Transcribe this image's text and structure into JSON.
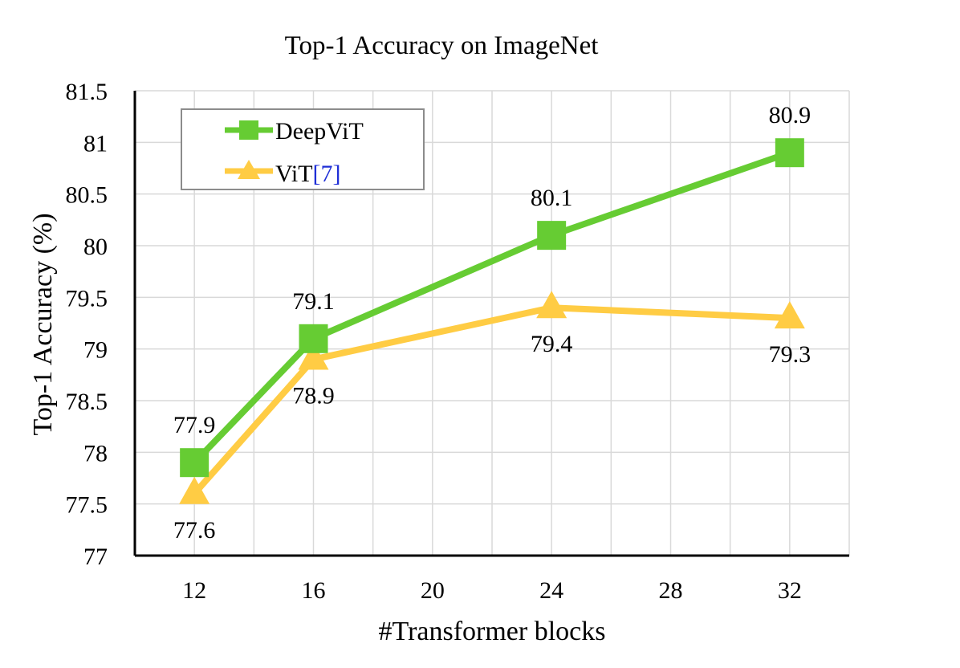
{
  "chart_data": {
    "type": "line",
    "title": "Top-1 Accuracy on ImageNet",
    "xlabel": "#Transformer blocks",
    "ylabel": "Top-1 Accuracy (%)",
    "xlim": [
      10,
      34
    ],
    "ylim": [
      77,
      81.5
    ],
    "x_ticks": [
      12,
      16,
      20,
      24,
      28,
      32
    ],
    "x_tick_labels": [
      "12",
      "16",
      "20",
      "24",
      "28",
      "32"
    ],
    "y_ticks": [
      77,
      77.5,
      78,
      78.5,
      79,
      79.5,
      80,
      80.5,
      81,
      81.5
    ],
    "y_tick_labels": [
      "77",
      "77.5",
      "78",
      "78.5",
      "79",
      "79.5",
      "80",
      "80.5",
      "81",
      "81.5"
    ],
    "grid": true,
    "legend_position": "top-left",
    "series": [
      {
        "name": "DeepViT",
        "marker": "square",
        "color": "#66cc33",
        "x": [
          12,
          16,
          24,
          32
        ],
        "values": [
          77.9,
          79.1,
          80.1,
          80.9
        ],
        "labels": [
          "77.9",
          "79.1",
          "80.1",
          "80.9"
        ],
        "label_position": "above"
      },
      {
        "name": "ViT",
        "citation": "[7]",
        "citation_color": "#1f2fd6",
        "marker": "triangle",
        "color": "#ffcc44",
        "x": [
          12,
          16,
          24,
          32
        ],
        "values": [
          77.6,
          78.9,
          79.4,
          79.3
        ],
        "labels": [
          "77.6",
          "78.9",
          "79.4",
          "79.3"
        ],
        "label_position": "below"
      }
    ]
  }
}
